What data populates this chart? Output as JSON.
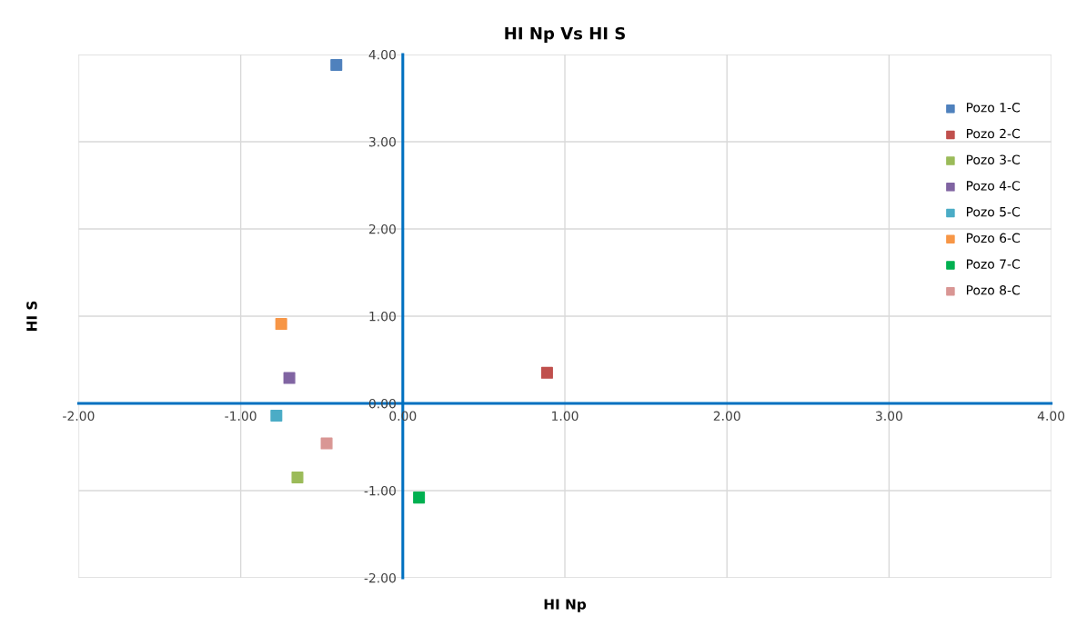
{
  "chart_data": {
    "type": "scatter",
    "title": "HI Np Vs HI S",
    "xlabel": "HI Np",
    "ylabel": "HI S",
    "series": [
      {
        "name": "Pozo 1-C",
        "color": "#4f81bd",
        "x": [
          -0.41
        ],
        "values": [
          3.88
        ]
      },
      {
        "name": "Pozo 2-C",
        "color": "#c0504d",
        "x": [
          0.89
        ],
        "values": [
          0.35
        ]
      },
      {
        "name": "Pozo 3-C",
        "color": "#9bbb59",
        "x": [
          -0.65
        ],
        "values": [
          -0.85
        ]
      },
      {
        "name": "Pozo 4-C",
        "color": "#8064a2",
        "x": [
          -0.7
        ],
        "values": [
          0.29
        ]
      },
      {
        "name": "Pozo 5-C",
        "color": "#4bacc6",
        "x": [
          -0.78
        ],
        "values": [
          -0.14
        ]
      },
      {
        "name": "Pozo 6-C",
        "color": "#f79646",
        "x": [
          -0.75
        ],
        "values": [
          0.91
        ]
      },
      {
        "name": "Pozo 7-C",
        "color": "#00b050",
        "x": [
          0.1
        ],
        "values": [
          -1.08
        ]
      },
      {
        "name": "Pozo 8-C",
        "color": "#d99694",
        "x": [
          -0.47
        ],
        "values": [
          -0.46
        ]
      }
    ],
    "xlim": [
      -2,
      4
    ],
    "ylim": [
      -2,
      4
    ],
    "xticks": [
      {
        "value": -2,
        "label": "-2.00"
      },
      {
        "value": -1,
        "label": "-1.00"
      },
      {
        "value": 0,
        "label": "0.00"
      },
      {
        "value": 1,
        "label": "1.00"
      },
      {
        "value": 2,
        "label": "2.00"
      },
      {
        "value": 3,
        "label": "3.00"
      },
      {
        "value": 4,
        "label": "4.00"
      }
    ],
    "yticks": [
      {
        "value": -2,
        "label": "-2.00"
      },
      {
        "value": -1,
        "label": "-1.00"
      },
      {
        "value": 0,
        "label": "0.00"
      },
      {
        "value": 1,
        "label": "1.00"
      },
      {
        "value": 2,
        "label": "2.00"
      },
      {
        "value": 3,
        "label": "3.00"
      },
      {
        "value": 4,
        "label": "4.00"
      }
    ],
    "grid": true,
    "legend": "top right",
    "marker": "square"
  }
}
